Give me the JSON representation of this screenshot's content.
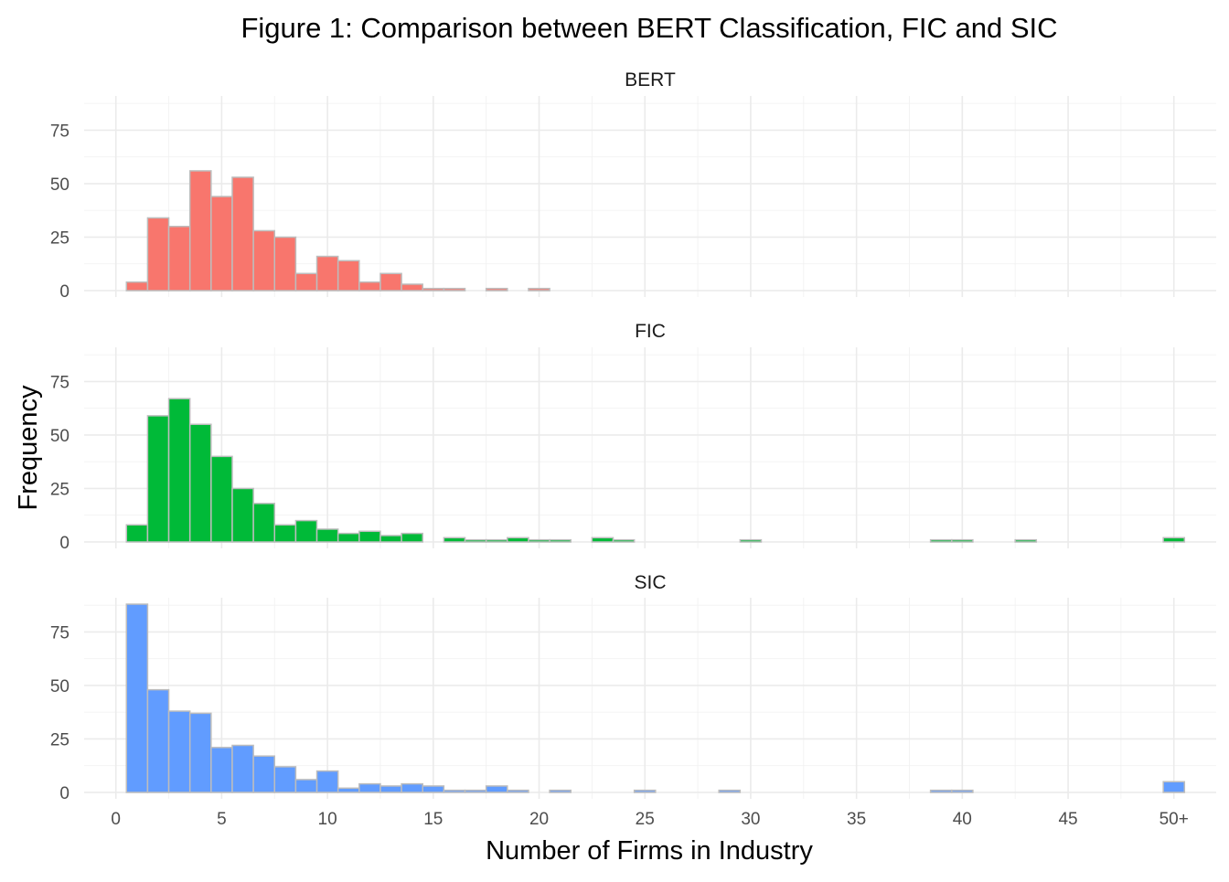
{
  "chart_data": {
    "type": "bar",
    "title": "Figure 1: Comparison between BERT Classification, FIC and SIC",
    "xlabel": "Number of Firms in Industry",
    "ylabel": "Frequency",
    "x_ticks": [
      "0",
      "5",
      "10",
      "15",
      "20",
      "25",
      "30",
      "35",
      "40",
      "45",
      "50+"
    ],
    "y_ticks": [
      "0",
      "25",
      "50",
      "75"
    ],
    "xlim": [
      -1.5,
      52
    ],
    "ylim": [
      -3,
      91
    ],
    "bin_width": 1,
    "x": [
      1,
      2,
      3,
      4,
      5,
      6,
      7,
      8,
      9,
      10,
      11,
      12,
      13,
      14,
      15,
      16,
      17,
      18,
      19,
      20,
      21,
      22,
      23,
      24,
      25,
      26,
      27,
      28,
      29,
      30,
      31,
      32,
      33,
      34,
      35,
      36,
      37,
      38,
      39,
      40,
      41,
      42,
      43,
      44,
      45,
      46,
      47,
      48,
      49,
      50
    ],
    "series": [
      {
        "name": "BERT",
        "color": "#F8766D",
        "values": [
          4,
          34,
          30,
          56,
          44,
          53,
          28,
          25,
          8,
          16,
          14,
          4,
          8,
          3,
          1,
          1,
          0,
          1,
          0,
          1,
          0,
          0,
          0,
          0,
          0,
          0,
          0,
          0,
          0,
          0,
          0,
          0,
          0,
          0,
          0,
          0,
          0,
          0,
          0,
          0,
          0,
          0,
          0,
          0,
          0,
          0,
          0,
          0,
          0,
          0
        ]
      },
      {
        "name": "FIC",
        "color": "#00BA38",
        "values": [
          8,
          59,
          67,
          55,
          40,
          25,
          18,
          8,
          10,
          6,
          4,
          5,
          3,
          4,
          0,
          2,
          1,
          1,
          2,
          1,
          1,
          0,
          2,
          1,
          0,
          0,
          0,
          0,
          0,
          1,
          0,
          0,
          0,
          0,
          0,
          0,
          0,
          0,
          1,
          1,
          0,
          0,
          1,
          0,
          0,
          0,
          0,
          0,
          0,
          2
        ]
      },
      {
        "name": "SIC",
        "color": "#619CFF",
        "values": [
          88,
          48,
          38,
          37,
          21,
          22,
          17,
          12,
          6,
          10,
          2,
          4,
          3,
          4,
          3,
          1,
          1,
          3,
          1,
          0,
          1,
          0,
          0,
          0,
          1,
          0,
          0,
          0,
          1,
          0,
          0,
          0,
          0,
          0,
          0,
          0,
          0,
          0,
          1,
          1,
          0,
          0,
          0,
          0,
          0,
          0,
          0,
          0,
          0,
          5
        ]
      }
    ],
    "grid": true,
    "legend": "none"
  }
}
